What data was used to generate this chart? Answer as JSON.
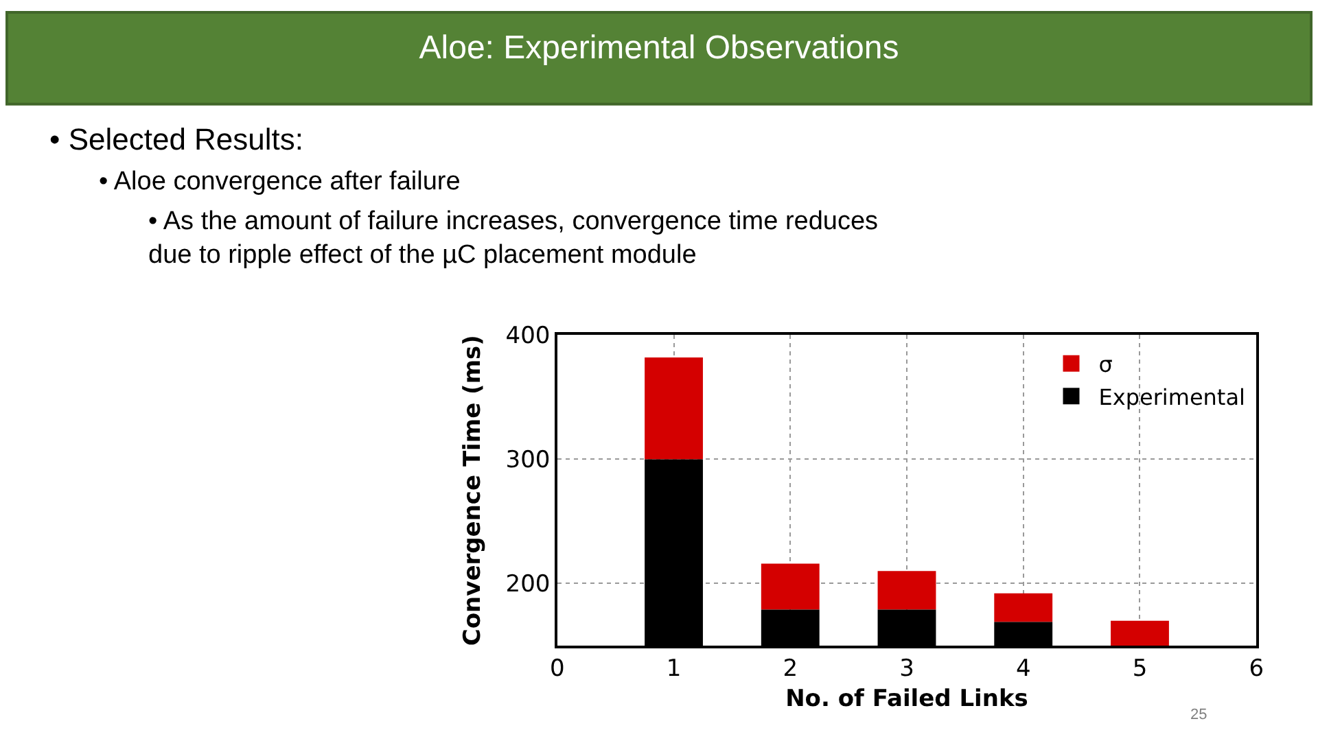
{
  "chart_data": {
    "type": "bar",
    "title": "Aloe: Experimental Observations",
    "annotations": [
      "• Selected Results:",
      "• Aloe convergence after failure",
      "• As the amount of failure increases, convergence time reduces\ndue to ripple effect of the µC placement module",
      "25"
    ],
    "xlabel": "No. of Failed Links",
    "ylabel": "Convergence Time (ms)",
    "x": [
      1,
      2,
      3,
      4,
      5
    ],
    "series": [
      {
        "name": "σ",
        "color": "#d40000",
        "values": [
          82,
          37,
          31,
          23,
          20
        ],
        "base": [
          300,
          179,
          179,
          169,
          150
        ]
      },
      {
        "name": "Experimental",
        "color": "#000000",
        "values": [
          300,
          179,
          179,
          169,
          null
        ]
      }
    ],
    "xlim": [
      0,
      6
    ],
    "xticks": [
      0,
      1,
      2,
      3,
      4,
      5,
      6
    ],
    "ylim": [
      150,
      400
    ],
    "yticks": [
      200,
      300,
      400
    ],
    "grid": true,
    "legend": "top right"
  }
}
